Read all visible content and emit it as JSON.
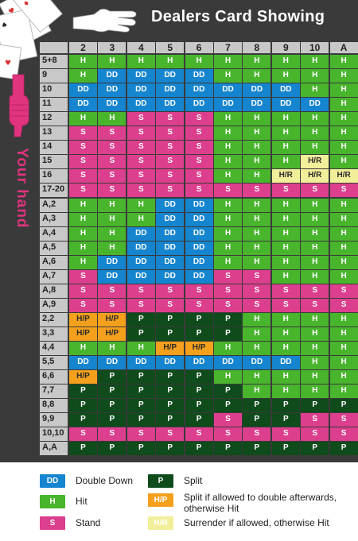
{
  "header": {
    "title": "Dealers Card Showing"
  },
  "side_label": "Your hand",
  "columns": [
    "2",
    "3",
    "4",
    "5",
    "6",
    "7",
    "8",
    "9",
    "10",
    "A"
  ],
  "rows": [
    {
      "label": "5+8",
      "cells": [
        "H",
        "H",
        "H",
        "H",
        "H",
        "H",
        "H",
        "H",
        "H",
        "H"
      ]
    },
    {
      "label": "9",
      "cells": [
        "H",
        "DD",
        "DD",
        "DD",
        "DD",
        "H",
        "H",
        "H",
        "H",
        "H"
      ]
    },
    {
      "label": "10",
      "cells": [
        "DD",
        "DD",
        "DD",
        "DD",
        "DD",
        "DD",
        "DD",
        "DD",
        "H",
        "H"
      ]
    },
    {
      "label": "11",
      "cells": [
        "DD",
        "DD",
        "DD",
        "DD",
        "DD",
        "DD",
        "DD",
        "DD",
        "DD",
        "H"
      ]
    },
    {
      "label": "12",
      "cells": [
        "H",
        "H",
        "S",
        "S",
        "S",
        "H",
        "H",
        "H",
        "H",
        "H"
      ]
    },
    {
      "label": "13",
      "cells": [
        "S",
        "S",
        "S",
        "S",
        "S",
        "H",
        "H",
        "H",
        "H",
        "H"
      ]
    },
    {
      "label": "14",
      "cells": [
        "S",
        "S",
        "S",
        "S",
        "S",
        "H",
        "H",
        "H",
        "H",
        "H"
      ]
    },
    {
      "label": "15",
      "cells": [
        "S",
        "S",
        "S",
        "S",
        "S",
        "H",
        "H",
        "H",
        "H/R",
        "H"
      ]
    },
    {
      "label": "16",
      "cells": [
        "S",
        "S",
        "S",
        "S",
        "S",
        "H",
        "H",
        "H/R",
        "H/R",
        "H/R"
      ]
    },
    {
      "label": "17-20",
      "cells": [
        "S",
        "S",
        "S",
        "S",
        "S",
        "S",
        "S",
        "S",
        "S",
        "S"
      ]
    },
    {
      "label": "A,2",
      "cells": [
        "H",
        "H",
        "H",
        "DD",
        "DD",
        "H",
        "H",
        "H",
        "H",
        "H"
      ]
    },
    {
      "label": "A,3",
      "cells": [
        "H",
        "H",
        "H",
        "DD",
        "DD",
        "H",
        "H",
        "H",
        "H",
        "H"
      ]
    },
    {
      "label": "A,4",
      "cells": [
        "H",
        "H",
        "DD",
        "DD",
        "DD",
        "H",
        "H",
        "H",
        "H",
        "H"
      ]
    },
    {
      "label": "A,5",
      "cells": [
        "H",
        "H",
        "DD",
        "DD",
        "DD",
        "H",
        "H",
        "H",
        "H",
        "H"
      ]
    },
    {
      "label": "A,6",
      "cells": [
        "H",
        "DD",
        "DD",
        "DD",
        "DD",
        "H",
        "H",
        "H",
        "H",
        "H"
      ]
    },
    {
      "label": "A,7",
      "cells": [
        "S",
        "DD",
        "DD",
        "DD",
        "DD",
        "S",
        "S",
        "H",
        "H",
        "H"
      ]
    },
    {
      "label": "A,8",
      "cells": [
        "S",
        "S",
        "S",
        "S",
        "S",
        "S",
        "S",
        "S",
        "S",
        "S"
      ]
    },
    {
      "label": "A,9",
      "cells": [
        "S",
        "S",
        "S",
        "S",
        "S",
        "S",
        "S",
        "S",
        "S",
        "S"
      ]
    },
    {
      "label": "2,2",
      "cells": [
        "H/P",
        "H/P",
        "P",
        "P",
        "P",
        "P",
        "H",
        "H",
        "H",
        "H"
      ]
    },
    {
      "label": "3,3",
      "cells": [
        "H/P",
        "H/P",
        "P",
        "P",
        "P",
        "P",
        "H",
        "H",
        "H",
        "H"
      ]
    },
    {
      "label": "4,4",
      "cells": [
        "H",
        "H",
        "H",
        "H/P",
        "H/P",
        "H",
        "H",
        "H",
        "H",
        "H"
      ]
    },
    {
      "label": "5,5",
      "cells": [
        "DD",
        "DD",
        "DD",
        "DD",
        "DD",
        "DD",
        "DD",
        "DD",
        "H",
        "H"
      ]
    },
    {
      "label": "6,6",
      "cells": [
        "H/P",
        "P",
        "P",
        "P",
        "P",
        "H",
        "H",
        "H",
        "H",
        "H"
      ]
    },
    {
      "label": "7,7",
      "cells": [
        "P",
        "P",
        "P",
        "P",
        "P",
        "P",
        "H",
        "H",
        "H",
        "H"
      ]
    },
    {
      "label": "8,8",
      "cells": [
        "P",
        "P",
        "P",
        "P",
        "P",
        "P",
        "P",
        "P",
        "P",
        "P"
      ]
    },
    {
      "label": "9,9",
      "cells": [
        "P",
        "P",
        "P",
        "P",
        "P",
        "S",
        "P",
        "P",
        "S",
        "S"
      ]
    },
    {
      "label": "10,10",
      "cells": [
        "S",
        "S",
        "S",
        "S",
        "S",
        "S",
        "S",
        "S",
        "S",
        "S"
      ]
    },
    {
      "label": "A,A",
      "cells": [
        "P",
        "P",
        "P",
        "P",
        "P",
        "P",
        "P",
        "P",
        "P",
        "P"
      ]
    }
  ],
  "legend": {
    "dd": {
      "code": "DD",
      "text": "Double Down"
    },
    "h": {
      "code": "H",
      "text": "Hit"
    },
    "s": {
      "code": "S",
      "text": "Stand"
    },
    "p": {
      "code": "P",
      "text": "Split"
    },
    "hp": {
      "code": "H/P",
      "text1": "Split if allowed to double afterwards,",
      "text2": "otherwise Hit"
    },
    "hr": {
      "code": "H/R",
      "text": "Surrender if allowed, otherwise Hit"
    }
  },
  "colors": {
    "H": "#49b52d",
    "S": "#dc3f8d",
    "DD": "#1585cf",
    "P": "#0f4b1b",
    "H/P": "#f5a01d",
    "H/R": "#f2ef9a",
    "background": "#3a3a3a",
    "header_text": "#ffffff",
    "side_label": "#e0347f"
  }
}
